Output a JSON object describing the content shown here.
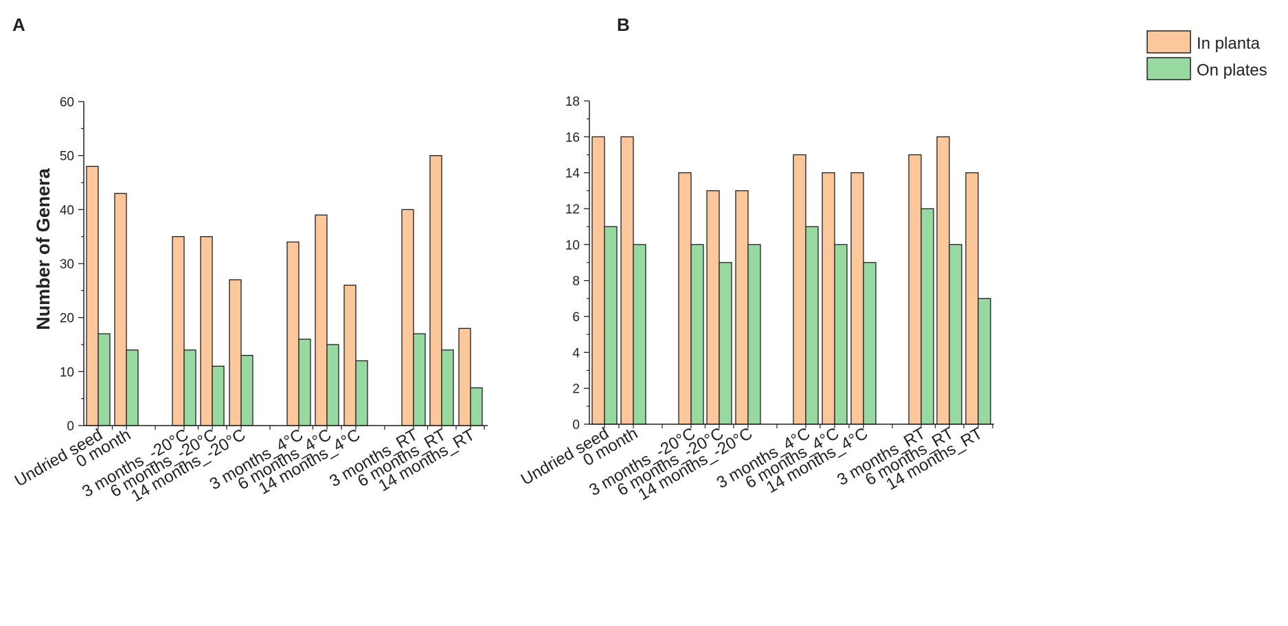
{
  "colors": {
    "in_planta": "#fcc79a",
    "on_plates": "#98d9a2",
    "outline": "#1e1e1e"
  },
  "legend": [
    {
      "label": "In planta",
      "color": "#fcc79a"
    },
    {
      "label": "On plates",
      "color": "#98d9a2"
    }
  ],
  "chart_data": [
    {
      "panel": "A",
      "type": "bar",
      "title": "",
      "xlabel": "",
      "ylabel": "Number of Genera",
      "ylim": [
        0,
        60
      ],
      "yticks": [
        0,
        10,
        20,
        30,
        40,
        50,
        60
      ],
      "grid": false,
      "categories": [
        "Undried seed",
        "0 month",
        "3 months_-20°C",
        "6 months_-20°C",
        "14 months_-20°C",
        "3 months_4°C",
        "6 months_4°C",
        "14 months_4°C",
        "3 months_RT",
        "6 months_RT",
        "14 months_RT"
      ],
      "series": [
        {
          "name": "In planta",
          "values": [
            48,
            43,
            35,
            35,
            27,
            34,
            39,
            26,
            40,
            50,
            18
          ]
        },
        {
          "name": "On plates",
          "values": [
            17,
            14,
            14,
            11,
            13,
            16,
            15,
            12,
            17,
            14,
            7
          ]
        }
      ]
    },
    {
      "panel": "B",
      "type": "bar",
      "title": "",
      "xlabel": "",
      "ylabel": "",
      "ylim": [
        0,
        18
      ],
      "yticks": [
        0,
        2,
        4,
        6,
        8,
        10,
        12,
        14,
        16,
        18
      ],
      "grid": false,
      "legend_position": "top-right",
      "categories": [
        "Undried seed",
        "0 month",
        "3 months_-20°C",
        "6 months_-20°C",
        "14 months_-20°C",
        "3 months_4°C",
        "6 months_4°C",
        "14 months_4°C",
        "3 months_RT",
        "6 months_RT",
        "14 months_RT"
      ],
      "series": [
        {
          "name": "In planta",
          "values": [
            16,
            16,
            14,
            13,
            13,
            15,
            14,
            14,
            15,
            16,
            14
          ]
        },
        {
          "name": "On plates",
          "values": [
            11,
            10,
            10,
            9,
            10,
            11,
            10,
            9,
            12,
            10,
            7
          ]
        }
      ]
    }
  ]
}
